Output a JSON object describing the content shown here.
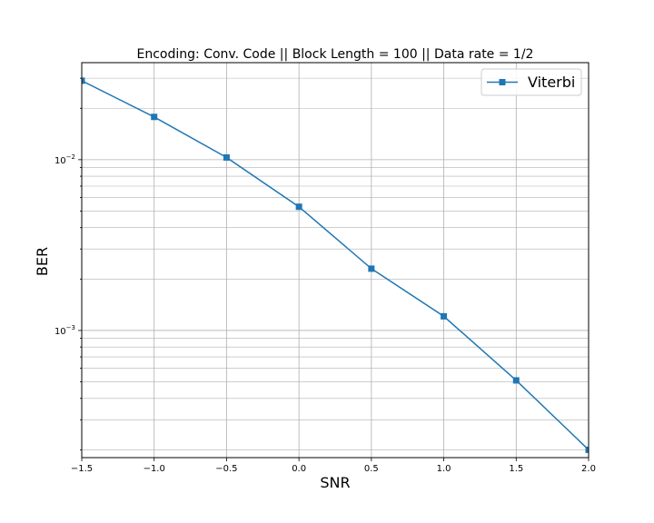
{
  "chart_data": {
    "type": "line",
    "title": "Encoding: Conv. Code || Block Length = 100 || Data rate = 1/2",
    "xlabel": "SNR",
    "ylabel": "BER",
    "yscale": "log",
    "xlim": [
      -1.5,
      2.0
    ],
    "ylim": [
      0.00018,
      0.037
    ],
    "x_ticks": [
      -1.5,
      -1.0,
      -0.5,
      0.0,
      0.5,
      1.0,
      1.5,
      2.0
    ],
    "x_tick_labels": [
      "−1.5",
      "−1.0",
      "−0.5",
      "0.0",
      "0.5",
      "1.0",
      "1.5",
      "2.0"
    ],
    "y_major_ticks": [
      0.01,
      0.001
    ],
    "y_major_tick_labels": [
      {
        "base": "10",
        "exp": "−2"
      },
      {
        "base": "10",
        "exp": "−3"
      }
    ],
    "grid": "both (major and minor)",
    "legend_position": "top-right",
    "series": [
      {
        "name": "Viterbi",
        "color": "#1f77b4",
        "marker": "square",
        "x": [
          -1.5,
          -1.0,
          -0.5,
          0.0,
          0.5,
          1.0,
          1.5,
          2.0
        ],
        "y": [
          0.029,
          0.0178,
          0.0103,
          0.0053,
          0.0023,
          0.00121,
          0.00051,
          0.0002
        ]
      }
    ]
  }
}
